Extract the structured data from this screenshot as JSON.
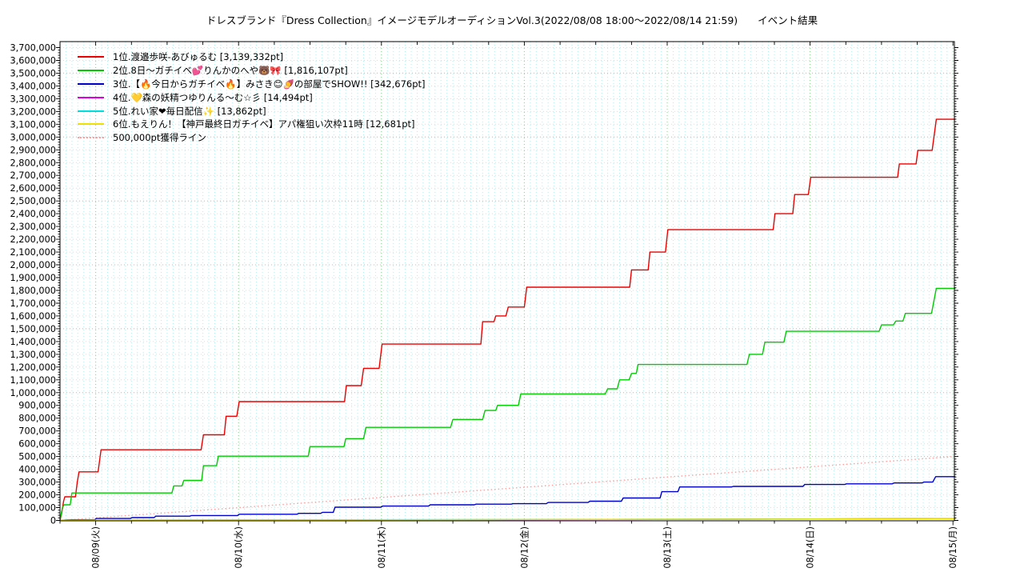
{
  "title": "ドレスブランド『Dress Collection』イメージモデルオーディションVol.3(2022/08/08 18:00～2022/08/14 21:59)　　イベント結果",
  "legend": {
    "entries": [
      {
        "label": "1位.渡邉歩咲-あびゅるむ [3,139,332pt]",
        "color": "#ee0000",
        "style": "solid"
      },
      {
        "label": "2位.8日～ガチイベ💕りんかのへや🐻🎀 [1,816,107pt]",
        "color": "#00cc00",
        "style": "solid"
      },
      {
        "label": "3位.【🔥今日からガチイベ🔥】みさき😊🍠の部屋でSHOW!! [342,676pt]",
        "color": "#0000cc",
        "style": "solid"
      },
      {
        "label": "4位.💛森の妖精つゆりんる～む☆彡 [14,494pt]",
        "color": "#dd00dd",
        "style": "solid"
      },
      {
        "label": "5位.れい家❤毎日配信✨ [13,862pt]",
        "color": "#00dddd",
        "style": "solid"
      },
      {
        "label": "6位.もえりん！【神戸最終日ガチイベ】アパ権狙い次枠11時 [12,681pt]",
        "color": "#f0e000",
        "style": "solid"
      },
      {
        "label": "500,000pt獲得ライン",
        "color": "#ff9f9f",
        "style": "dotted"
      }
    ]
  },
  "chart_data": {
    "type": "line",
    "title": "ドレスブランド『Dress Collection』イメージモデルオーディションVol.3(2022/08/08 18:00～2022/08/14 21:59) イベント結果",
    "x_axis": {
      "unit": "hours since 2022-08-08 18:00",
      "range": [
        0,
        150.4
      ],
      "minor_tick_hours": 6,
      "ticks": [
        {
          "t": 6,
          "label": "08/09(火)"
        },
        {
          "t": 30,
          "label": "08/10(水)"
        },
        {
          "t": 54,
          "label": "08/11(木)"
        },
        {
          "t": 78,
          "label": "08/12(金)"
        },
        {
          "t": 102,
          "label": "08/13(土)"
        },
        {
          "t": 126,
          "label": "08/14(日)"
        },
        {
          "t": 150,
          "label": "08/15(月)"
        }
      ]
    },
    "y_axis": {
      "min": 0,
      "max": 3700000,
      "step": 100000,
      "minor_step": 20000,
      "major_grid_step": 500000,
      "label_format": "comma"
    },
    "grid": {
      "minor_color": "#b5ecec",
      "major_h_color": "#c3c37a",
      "major_v_color": "#8fd08f",
      "dash": "1 3"
    },
    "series": [
      {
        "name": "1位.渡邉歩咲-あびゅるむ",
        "final_pt": 3139332,
        "color": "#ee0000",
        "points": [
          [
            0,
            0
          ],
          [
            0.3,
            60000
          ],
          [
            0.6,
            150000
          ],
          [
            0.8,
            185000
          ],
          [
            2.6,
            185000
          ],
          [
            2.9,
            300000
          ],
          [
            3.2,
            380000
          ],
          [
            6.4,
            380000
          ],
          [
            6.9,
            553000
          ],
          [
            23.7,
            553000
          ],
          [
            24.1,
            670000
          ],
          [
            27.6,
            670000
          ],
          [
            27.9,
            815000
          ],
          [
            29.7,
            815000
          ],
          [
            30.1,
            930000
          ],
          [
            47.8,
            930000
          ],
          [
            48.1,
            1055000
          ],
          [
            50.6,
            1055000
          ],
          [
            51,
            1190000
          ],
          [
            53.6,
            1190000
          ],
          [
            54.1,
            1380000
          ],
          [
            70.7,
            1380000
          ],
          [
            71,
            1555000
          ],
          [
            72.9,
            1555000
          ],
          [
            73.2,
            1600000
          ],
          [
            74.9,
            1600000
          ],
          [
            75.3,
            1670000
          ],
          [
            78,
            1670000
          ],
          [
            78.4,
            1825000
          ],
          [
            95.7,
            1825000
          ],
          [
            96,
            1960000
          ],
          [
            98.8,
            1960000
          ],
          [
            99.1,
            2100000
          ],
          [
            101.7,
            2100000
          ],
          [
            102.1,
            2275000
          ],
          [
            119.8,
            2275000
          ],
          [
            120.1,
            2400000
          ],
          [
            123.1,
            2400000
          ],
          [
            123.4,
            2550000
          ],
          [
            125.7,
            2550000
          ],
          [
            126.1,
            2685000
          ],
          [
            140.7,
            2685000
          ],
          [
            141,
            2790000
          ],
          [
            143.8,
            2790000
          ],
          [
            144.1,
            2896000
          ],
          [
            146.5,
            2896000
          ],
          [
            147.2,
            3139332
          ],
          [
            150.4,
            3139332
          ]
        ]
      },
      {
        "name": "2位.8日～ガチイベ💕りんかのへや🐻🎀",
        "final_pt": 1816107,
        "color": "#00cc00",
        "points": [
          [
            0,
            0
          ],
          [
            0.4,
            100000
          ],
          [
            0.7,
            122000
          ],
          [
            1.7,
            122000
          ],
          [
            2,
            215000
          ],
          [
            18.8,
            215000
          ],
          [
            19.1,
            270000
          ],
          [
            20.5,
            270000
          ],
          [
            20.8,
            313000
          ],
          [
            23.8,
            313000
          ],
          [
            24.1,
            428000
          ],
          [
            26.3,
            428000
          ],
          [
            26.6,
            503000
          ],
          [
            41.7,
            503000
          ],
          [
            42,
            578000
          ],
          [
            47.7,
            578000
          ],
          [
            48,
            640000
          ],
          [
            51,
            640000
          ],
          [
            51.4,
            728000
          ],
          [
            65.6,
            728000
          ],
          [
            66,
            790000
          ],
          [
            71,
            790000
          ],
          [
            71.4,
            860000
          ],
          [
            73.2,
            860000
          ],
          [
            73.5,
            900000
          ],
          [
            77,
            900000
          ],
          [
            77.4,
            990000
          ],
          [
            91.6,
            990000
          ],
          [
            92,
            1030000
          ],
          [
            93.6,
            1030000
          ],
          [
            94,
            1100000
          ],
          [
            95.6,
            1100000
          ],
          [
            96,
            1150000
          ],
          [
            96.8,
            1150000
          ],
          [
            97.1,
            1220000
          ],
          [
            115.4,
            1220000
          ],
          [
            115.8,
            1300000
          ],
          [
            118,
            1300000
          ],
          [
            118.4,
            1395000
          ],
          [
            121.6,
            1395000
          ],
          [
            122,
            1480000
          ],
          [
            137.6,
            1480000
          ],
          [
            138,
            1530000
          ],
          [
            140,
            1530000
          ],
          [
            140.4,
            1560000
          ],
          [
            141.6,
            1560000
          ],
          [
            142,
            1620000
          ],
          [
            146.4,
            1620000
          ],
          [
            147.2,
            1816107
          ],
          [
            150.4,
            1816107
          ]
        ]
      },
      {
        "name": "3位.【🔥今日からガチイベ🔥】みさき😊🍠の部屋でSHOW!!",
        "final_pt": 342676,
        "color": "#0000cc",
        "points": [
          [
            0,
            0
          ],
          [
            1,
            3000
          ],
          [
            2,
            5000
          ],
          [
            5.8,
            5000
          ],
          [
            6.1,
            15000
          ],
          [
            11.8,
            15000
          ],
          [
            12.1,
            22000
          ],
          [
            15.8,
            22000
          ],
          [
            16.1,
            33000
          ],
          [
            21.8,
            33000
          ],
          [
            22.1,
            38000
          ],
          [
            29.8,
            38000
          ],
          [
            30.1,
            48000
          ],
          [
            39.8,
            48000
          ],
          [
            40.1,
            55000
          ],
          [
            43.8,
            55000
          ],
          [
            44.1,
            63000
          ],
          [
            45.9,
            63000
          ],
          [
            46.2,
            103000
          ],
          [
            53.9,
            103000
          ],
          [
            54.2,
            112000
          ],
          [
            61.9,
            112000
          ],
          [
            62.2,
            122000
          ],
          [
            69.6,
            122000
          ],
          [
            69.9,
            127000
          ],
          [
            75.8,
            127000
          ],
          [
            76.1,
            131000
          ],
          [
            81.7,
            131000
          ],
          [
            82,
            140000
          ],
          [
            88.7,
            140000
          ],
          [
            89,
            150000
          ],
          [
            94.3,
            150000
          ],
          [
            94.6,
            175000
          ],
          [
            100.8,
            175000
          ],
          [
            101.1,
            225000
          ],
          [
            103.8,
            225000
          ],
          [
            104.1,
            262000
          ],
          [
            112.8,
            262000
          ],
          [
            113.1,
            266000
          ],
          [
            124.8,
            266000
          ],
          [
            125.1,
            281000
          ],
          [
            131.8,
            281000
          ],
          [
            132.1,
            286000
          ],
          [
            139.8,
            286000
          ],
          [
            140.1,
            293000
          ],
          [
            144.8,
            293000
          ],
          [
            145.1,
            300000
          ],
          [
            146.6,
            300000
          ],
          [
            147.1,
            342676
          ],
          [
            150.4,
            342676
          ]
        ]
      },
      {
        "name": "4位.💛森の妖精つゆりんる～む☆彡",
        "final_pt": 14494,
        "color": "#dd00dd",
        "points": [
          [
            0,
            0
          ],
          [
            1,
            1500
          ],
          [
            24,
            2500
          ],
          [
            48,
            3500
          ],
          [
            72,
            5000
          ],
          [
            96,
            7000
          ],
          [
            108,
            9000
          ],
          [
            120,
            10500
          ],
          [
            132,
            12000
          ],
          [
            144,
            13500
          ],
          [
            147,
            14494
          ],
          [
            150.4,
            14494
          ]
        ]
      },
      {
        "name": "5位.れい家❤毎日配信✨",
        "final_pt": 13862,
        "color": "#00dddd",
        "points": [
          [
            0,
            0
          ],
          [
            2,
            2000
          ],
          [
            24,
            3500
          ],
          [
            48,
            5000
          ],
          [
            72,
            6500
          ],
          [
            96,
            8500
          ],
          [
            120,
            10500
          ],
          [
            144,
            13000
          ],
          [
            147,
            13862
          ],
          [
            150.4,
            13862
          ]
        ]
      },
      {
        "name": "6位.もえりん！【神戸最終日ガチイベ】アパ権狙い次枠11時",
        "final_pt": 12681,
        "color": "#f0e000",
        "points": [
          [
            0,
            0
          ],
          [
            2,
            1000
          ],
          [
            24,
            2500
          ],
          [
            48,
            4500
          ],
          [
            72,
            6000
          ],
          [
            96,
            8000
          ],
          [
            120,
            10000
          ],
          [
            144,
            12000
          ],
          [
            147,
            12681
          ],
          [
            150.4,
            12681
          ]
        ]
      }
    ],
    "reference_line": {
      "name": "500,000pt獲得ライン",
      "color": "#ff9f9f",
      "style": "dotted",
      "points": [
        [
          0,
          0
        ],
        [
          150.4,
          500000
        ]
      ]
    },
    "legend_position": "upper-left",
    "grid_on": true
  }
}
